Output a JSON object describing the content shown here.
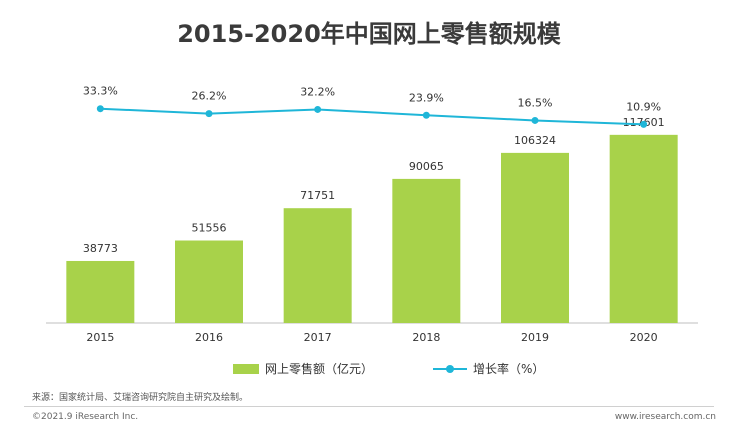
{
  "chart_data": {
    "type": "bar",
    "title": "2015-2020年中国网上零售额规模",
    "categories": [
      "2015",
      "2016",
      "2017",
      "2018",
      "2019",
      "2020"
    ],
    "series": [
      {
        "name": "网上零售额（亿元）",
        "type": "bar",
        "color": "#a8d24a",
        "values": [
          38773,
          51556,
          71751,
          90065,
          106324,
          117601
        ]
      },
      {
        "name": "增长率（%）",
        "type": "line",
        "color": "#1fb6d8",
        "values": [
          33.3,
          26.2,
          32.2,
          23.9,
          16.5,
          10.9
        ],
        "labels": [
          "33.3%",
          "26.2%",
          "32.2%",
          "23.9%",
          "16.5%",
          "10.9%"
        ]
      }
    ],
    "legend_position": "bottom",
    "grid": false
  },
  "source": "来源：国家统计局、艾瑞咨询研究院自主研究及绘制。",
  "footer": {
    "copyright": "©2021.9 iResearch Inc.",
    "website": "www.iresearch.com.cn"
  }
}
